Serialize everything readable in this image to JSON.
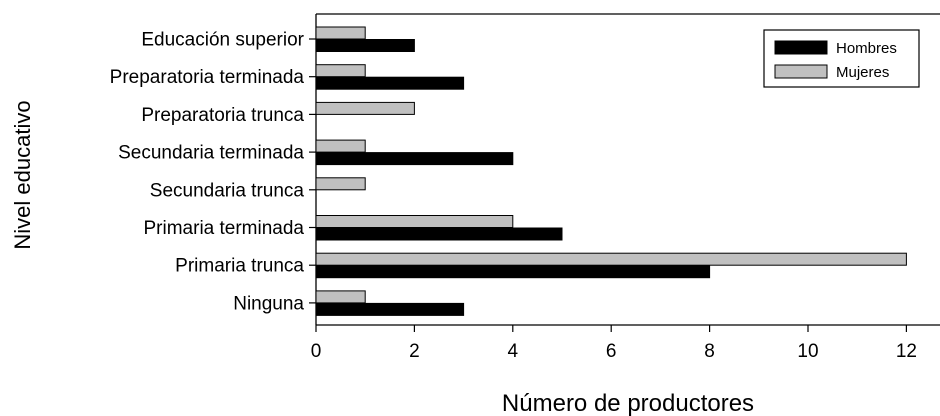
{
  "chart_data": {
    "type": "bar",
    "orientation": "horizontal",
    "xlabel": "Número de productores",
    "ylabel": "Nivel educativo",
    "categories": [
      "Educación superior",
      "Preparatoria terminada",
      "Preparatoria trunca",
      "Secundaria terminada",
      "Secundaria trunca",
      "Primaria terminada",
      "Primaria trunca",
      "Ninguna"
    ],
    "series": [
      {
        "name": "Hombres",
        "color": "#000000",
        "values": [
          2,
          3,
          0,
          4,
          0,
          5,
          8,
          3
        ]
      },
      {
        "name": "Mujeres",
        "color": "#c0c0c0",
        "values": [
          1,
          1,
          2,
          1,
          1,
          4,
          12,
          1
        ]
      }
    ],
    "xlim": [
      0,
      12.5
    ],
    "xticks": [
      0,
      2,
      4,
      6,
      8,
      10,
      12
    ],
    "grid": false,
    "legend_position": "top-right"
  }
}
